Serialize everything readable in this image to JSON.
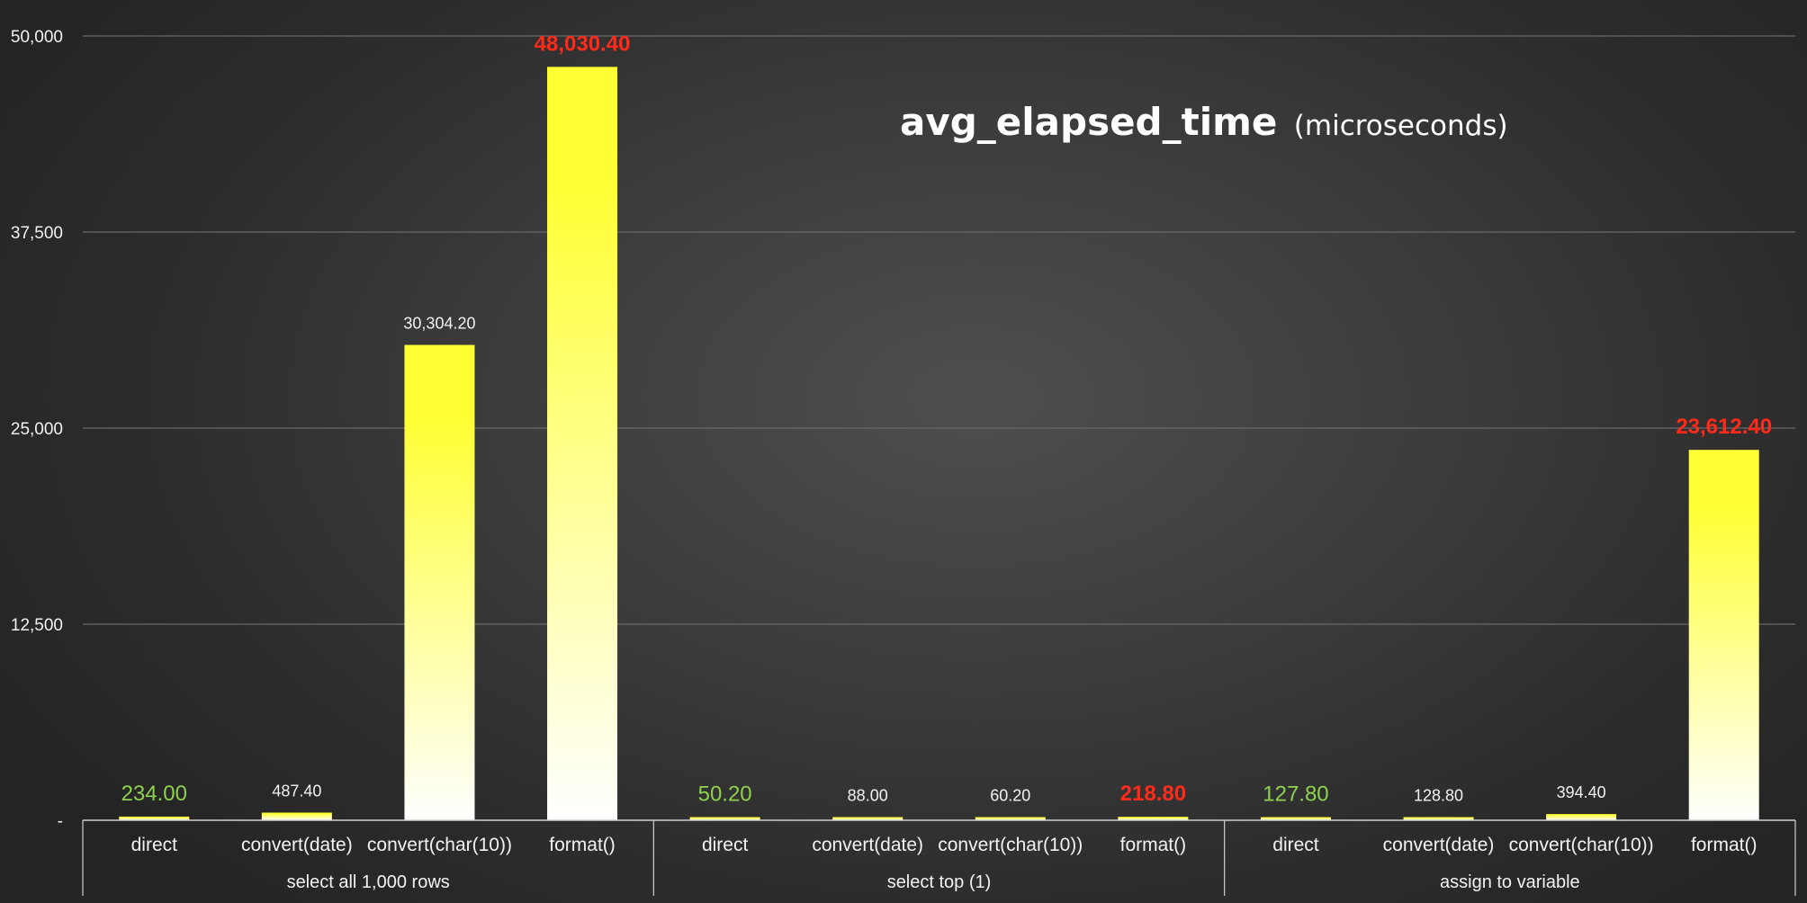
{
  "chart_data": {
    "type": "bar",
    "title": "avg_elapsed_time",
    "subtitle": "(microseconds)",
    "ylim": [
      0,
      50000
    ],
    "yticks": [
      0,
      12500,
      25000,
      37500,
      50000
    ],
    "ytick_labels": [
      "-",
      "12,500",
      "25,000",
      "37,500",
      "50,000"
    ],
    "grid": true,
    "groups": [
      {
        "name": "select all 1,000 rows",
        "categories": [
          "direct",
          "convert(date)",
          "convert(char(10))",
          "format()"
        ],
        "values": [
          234.0,
          487.4,
          30304.2,
          48030.4
        ],
        "labels": [
          "234.00",
          "487.40",
          "30,304.20",
          "48,030.40"
        ],
        "label_styles": [
          "best",
          "normal",
          "normal",
          "worst"
        ]
      },
      {
        "name": "select top (1)",
        "categories": [
          "direct",
          "convert(date)",
          "convert(char(10))",
          "format()"
        ],
        "values": [
          50.2,
          88.0,
          60.2,
          218.8
        ],
        "labels": [
          "50.20",
          "88.00",
          "60.20",
          "218.80"
        ],
        "label_styles": [
          "best",
          "normal",
          "normal",
          "worst"
        ]
      },
      {
        "name": "assign to variable",
        "categories": [
          "direct",
          "convert(date)",
          "convert(char(10))",
          "format()"
        ],
        "values": [
          127.8,
          128.8,
          394.4,
          23612.4
        ],
        "labels": [
          "127.80",
          "128.80",
          "394.40",
          "23,612.40"
        ],
        "label_styles": [
          "best",
          "normal",
          "normal",
          "worst"
        ]
      }
    ],
    "colors": {
      "bar_top": "#ffff33",
      "bar_bottom": "#ffffff",
      "best_label": "#8fd14f",
      "worst_label": "#ff2a1a",
      "normal_label": "#f2f2f2",
      "gridline": "#6a6a6a",
      "axis": "#d0d0d0"
    }
  }
}
